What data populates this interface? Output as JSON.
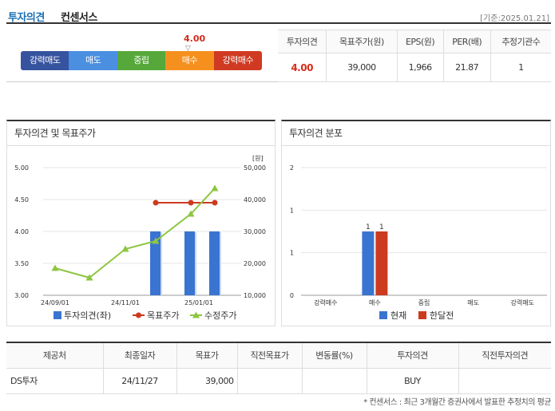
{
  "header": {
    "title_main": "투자의견",
    "title_sub": "컨센서스",
    "date": "[기준:2025.01.21]"
  },
  "gauge": {
    "value": "4.00",
    "marker": "▽",
    "levels": [
      "강력매도",
      "매도",
      "중립",
      "매수",
      "강력매수"
    ],
    "colors": [
      "#36539f",
      "#4a8fe0",
      "#56a83a",
      "#f5901e",
      "#d03a22"
    ]
  },
  "consensus": {
    "headers": [
      "투자의견",
      "목표주가(원)",
      "EPS(원)",
      "PER(배)",
      "추정기관수"
    ],
    "values": [
      "4.00",
      "39,000",
      "1,966",
      "21.87",
      "1"
    ]
  },
  "panels": {
    "left_title": "투자의견 및 목표주가",
    "right_title": "투자의견 분포"
  },
  "chart_data": [
    {
      "type": "bar",
      "title": "투자의견 및 목표주가",
      "ylabel_right": "[원]",
      "ylim_left": [
        3.0,
        5.0
      ],
      "ylim_right": [
        10000,
        50000
      ],
      "left_ticks": [
        "3.00",
        "3.50",
        "4.00",
        "4.50",
        "5.00"
      ],
      "right_ticks": [
        "10,000",
        "20,000",
        "30,000",
        "40,000",
        "50,000"
      ],
      "x_ticks": [
        "24/09/01",
        "24/11/01",
        "25/01/01"
      ],
      "legend": [
        "투자의견(좌)",
        "목표주가",
        "수정주가"
      ],
      "opinion_bars": [
        4.0,
        4.0,
        4.0
      ],
      "target_price": [
        39000,
        39000,
        39000
      ],
      "adjusted_price": [
        18500,
        15500,
        24500,
        27000,
        35500,
        43500
      ],
      "colors": {
        "bar": "#3a74d1",
        "target": "#cc3a1f",
        "adjusted": "#8dc63f"
      }
    },
    {
      "type": "bar",
      "title": "투자의견 분포",
      "categories": [
        "강력매수",
        "매수",
        "중립",
        "매도",
        "강력매도"
      ],
      "y_ticks": [
        "0",
        "1",
        "1",
        "2"
      ],
      "series": [
        {
          "name": "현재",
          "values": [
            0,
            1,
            0,
            0,
            0
          ],
          "color": "#3a74d1"
        },
        {
          "name": "한달전",
          "values": [
            0,
            1,
            0,
            0,
            0
          ],
          "color": "#cc3a1f"
        }
      ],
      "ylim": [
        0,
        2
      ]
    }
  ],
  "history": {
    "headers": [
      "제공처",
      "최종일자",
      "목표가",
      "직전목표가",
      "변동률(%)",
      "투자의견",
      "직전투자의견"
    ],
    "rows": [
      [
        "DS투자",
        "24/11/27",
        "39,000",
        "",
        "",
        "BUY",
        ""
      ]
    ]
  },
  "footnote": "* 컨센서스 : 최근 3개월간 증권사에서 발표한 추정치의 평균"
}
